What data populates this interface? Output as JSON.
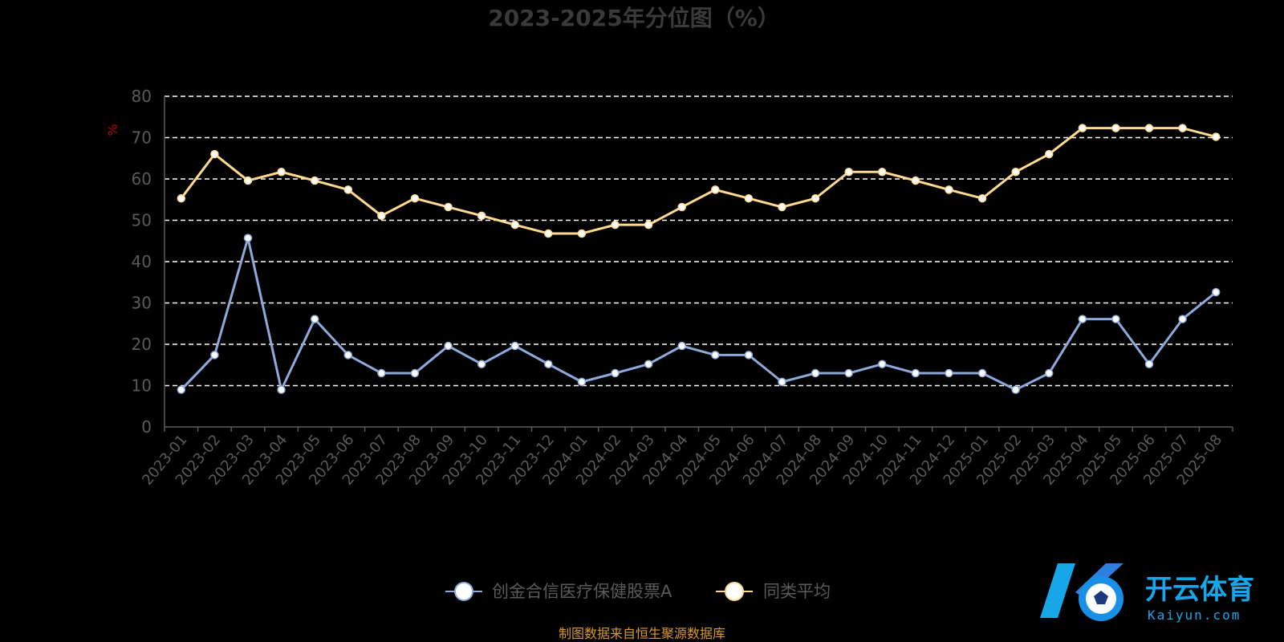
{
  "chart_data": {
    "type": "line",
    "title": "2023-2025年分位图（%）",
    "ylabel": "%",
    "xlabel": "",
    "ylim": [
      0,
      80
    ],
    "yticks": [
      0,
      10,
      20,
      30,
      40,
      50,
      60,
      70,
      80
    ],
    "grid": true,
    "legend": "bottom-center",
    "categories": [
      "2023-01",
      "2023-02",
      "2023-03",
      "2023-04",
      "2023-05",
      "2023-06",
      "2023-07",
      "2023-08",
      "2023-09",
      "2023-10",
      "2023-11",
      "2023-12",
      "2024-01",
      "2024-02",
      "2024-03",
      "2024-04",
      "2024-05",
      "2024-06",
      "2024-07",
      "2024-08",
      "2024-09",
      "2024-10",
      "2024-11",
      "2024-12",
      "2025-01",
      "2025-02",
      "2025-03",
      "2025-04",
      "2025-05",
      "2025-06",
      "2025-07",
      "2025-08"
    ],
    "series": [
      {
        "name": "创金合信医疗保健股票A",
        "color": "#8eaadb",
        "values": [
          9,
          17.4,
          45.7,
          9,
          26.1,
          17.4,
          13,
          13,
          19.6,
          15.2,
          19.6,
          15.2,
          10.9,
          13,
          15.2,
          19.6,
          17.4,
          17.4,
          10.9,
          13,
          13,
          15.2,
          13,
          13,
          13,
          9,
          13,
          26.1,
          26.1,
          15.2,
          26.1,
          32.6
        ]
      },
      {
        "name": "同类平均",
        "color": "#ffd98f",
        "values": [
          55.3,
          66,
          59.6,
          61.7,
          59.6,
          57.4,
          51.1,
          55.3,
          53.2,
          51.1,
          48.9,
          46.8,
          46.8,
          48.9,
          48.9,
          53.2,
          57.4,
          55.3,
          53.2,
          55.3,
          61.7,
          61.7,
          59.6,
          57.4,
          55.3,
          61.7,
          66,
          72.3,
          72.3,
          72.3,
          72.3,
          70.2
        ]
      }
    ]
  },
  "source_note": "制图数据来自恒生聚源数据库",
  "watermark": {
    "cn": "开云体育",
    "en": "Kaiyun.com"
  }
}
